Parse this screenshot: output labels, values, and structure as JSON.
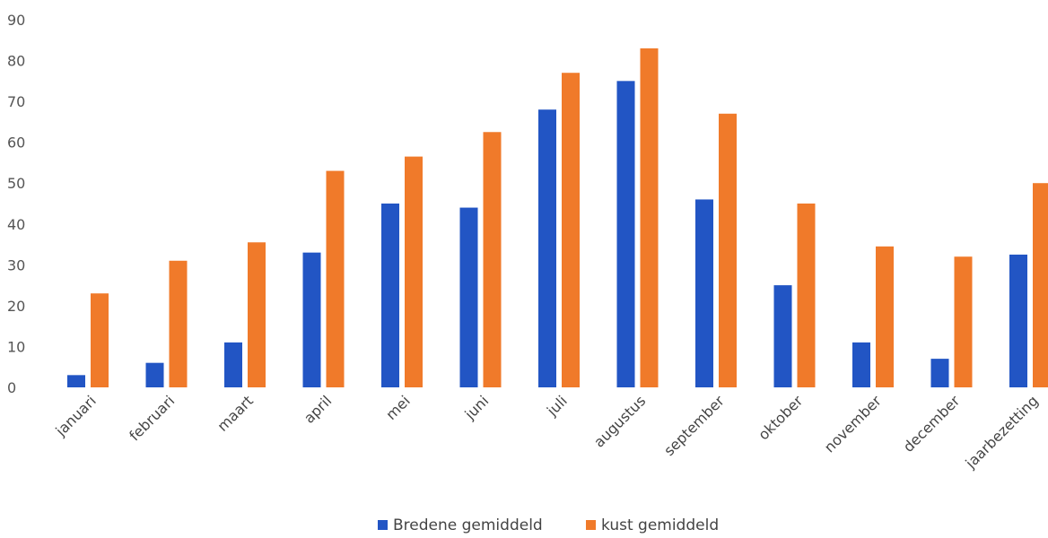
{
  "chart_data": {
    "type": "bar",
    "title": "",
    "xlabel": "",
    "ylabel": "",
    "ylim": [
      0,
      90
    ],
    "yticks": [
      0,
      10,
      20,
      30,
      40,
      50,
      60,
      70,
      80,
      90
    ],
    "grid": false,
    "legend_position": "bottom",
    "categories": [
      "januari",
      "februari",
      "maart",
      "april",
      "mei",
      "juni",
      "juli",
      "augustus",
      "september",
      "oktober",
      "november",
      "december",
      "jaarbezetting"
    ],
    "series": [
      {
        "name": "Bredene gemiddeld",
        "color": "#2255c4",
        "values": [
          3,
          6,
          11,
          33,
          45,
          44,
          68,
          75,
          46,
          25,
          11,
          7,
          32.5
        ]
      },
      {
        "name": "kust gemiddeld",
        "color": "#f07a2a",
        "values": [
          23,
          31,
          35.5,
          53,
          56.5,
          62.5,
          77,
          83,
          67,
          45,
          34.5,
          32,
          50
        ]
      }
    ]
  }
}
